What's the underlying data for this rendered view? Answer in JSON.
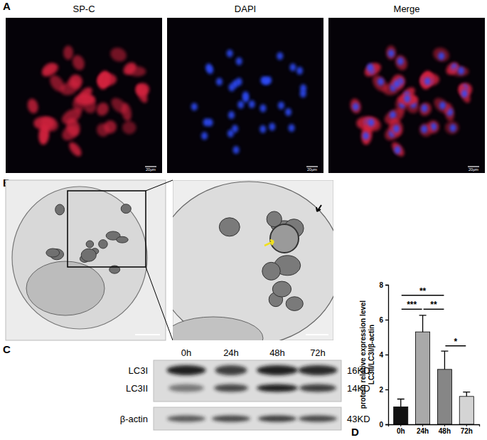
{
  "panels": {
    "A": {
      "label": "A",
      "titles": [
        "SP-C",
        "DAPI",
        "Merge"
      ],
      "scale_bar": "20μm"
    },
    "B": {
      "label": "B"
    },
    "C": {
      "label": "C",
      "lanes": [
        "0h",
        "24h",
        "48h",
        "72h"
      ],
      "bands": [
        "LC3I",
        "LC3II"
      ],
      "band_sizes": [
        "16KD",
        "14KD"
      ],
      "loading_control": "β-actin",
      "loading_control_size": "43KD"
    }
  },
  "chart_data": {
    "panel_label": "D",
    "type": "bar",
    "ylabel": [
      "protein relative expression level",
      "LC3II/LC3I/β-actin"
    ],
    "categories": [
      "0h",
      "24h",
      "48h",
      "72h"
    ],
    "values": [
      1.0,
      5.3,
      3.15,
      1.6
    ],
    "errors": [
      0.45,
      0.95,
      1.05,
      0.25
    ],
    "colors": [
      "#111111",
      "#a9a9a9",
      "#868686",
      "#d4d4d4"
    ],
    "ylim": [
      0,
      8
    ],
    "yticks": [
      0,
      2,
      4,
      6,
      8
    ],
    "significance": [
      {
        "from": "0h",
        "to": "48h",
        "y": 7.4,
        "label": "**"
      },
      {
        "from": "0h",
        "to": "24h",
        "y": 6.6,
        "label": "***"
      },
      {
        "from": "24h",
        "to": "48h",
        "y": 6.6,
        "label": "**"
      },
      {
        "from": "48h",
        "to": "72h",
        "y": 4.5,
        "label": "*"
      }
    ]
  }
}
